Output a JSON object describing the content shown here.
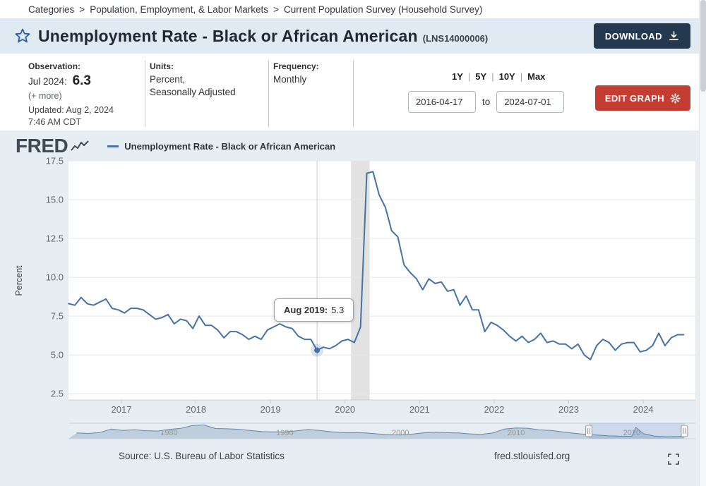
{
  "breadcrumb": {
    "items": [
      "Categories",
      "Population, Employment, & Labor Markets",
      "Current Population Survey (Household Survey)"
    ],
    "separator": ">"
  },
  "header": {
    "title": "Unemployment Rate - Black or African American",
    "series_id": "(LNS14000006)",
    "download_label": "DOWNLOAD"
  },
  "meta": {
    "observation_label": "Observation:",
    "observation_period": "Jul 2024:",
    "observation_value": "6.3",
    "more_link": "(+ more)",
    "updated": "Updated: Aug 2, 2024",
    "updated_time": "7:46 AM CDT",
    "units_label": "Units:",
    "units_value_1": "Percent,",
    "units_value_2": "Seasonally Adjusted",
    "frequency_label": "Frequency:",
    "frequency_value": "Monthly"
  },
  "range": {
    "presets": [
      "1Y",
      "5Y",
      "10Y",
      "Max"
    ],
    "separator": "|",
    "start_date": "2016-04-17",
    "to_label": "to",
    "end_date": "2024-07-01",
    "edit_label": "EDIT GRAPH"
  },
  "logo": {
    "text": "FRED"
  },
  "footer": {
    "source": "Source: U.S. Bureau of Labor Statistics",
    "site": "fred.stlouisfed.org"
  },
  "chart_data": {
    "type": "line",
    "title": "Unemployment Rate - Black or African American",
    "ylabel": "Percent",
    "series_color": "#4572a7",
    "frequency": "monthly",
    "start": "2016-04",
    "values": [
      8.3,
      8.2,
      8.7,
      8.3,
      8.2,
      8.4,
      8.6,
      8.0,
      7.9,
      7.7,
      8.0,
      8.0,
      7.9,
      7.6,
      7.3,
      7.4,
      7.6,
      7.0,
      7.3,
      7.2,
      6.7,
      7.5,
      6.9,
      6.9,
      6.6,
      6.1,
      6.5,
      6.5,
      6.3,
      6.0,
      6.2,
      6.0,
      6.6,
      6.8,
      7.0,
      6.8,
      6.7,
      6.2,
      6.0,
      6.0,
      5.3,
      5.5,
      5.4,
      5.6,
      5.9,
      6.0,
      5.8,
      6.8,
      16.7,
      16.8,
      15.3,
      14.5,
      13.0,
      12.6,
      10.8,
      10.3,
      9.9,
      9.2,
      9.9,
      9.6,
      9.7,
      9.1,
      9.2,
      8.2,
      8.8,
      7.9,
      7.9,
      6.5,
      7.1,
      6.9,
      6.6,
      6.2,
      5.9,
      6.2,
      5.8,
      6.0,
      6.4,
      5.8,
      5.9,
      5.7,
      5.7,
      5.4,
      5.7,
      5.0,
      4.7,
      5.6,
      6.0,
      5.8,
      5.3,
      5.7,
      5.8,
      5.8,
      5.2,
      5.3,
      5.6,
      6.4,
      5.6,
      6.1,
      6.3,
      6.3
    ],
    "yticks": [
      2.5,
      5.0,
      7.5,
      10.0,
      12.5,
      15.0,
      17.5
    ],
    "ylim": [
      2.1,
      17.5
    ],
    "xticks_years": [
      2017,
      2018,
      2019,
      2020,
      2021,
      2022,
      2023,
      2024
    ],
    "xlim_years": [
      2016.29,
      2024.7
    ],
    "recession_band_years": [
      2020.08,
      2020.33
    ],
    "grid": "horizontal",
    "highlight": {
      "index": 40,
      "value": 5.3,
      "label_text": "Aug 2019:",
      "value_text": "5.3"
    },
    "navigator": {
      "xlim_years": [
        1971.3,
        2025.5
      ],
      "selected_years": [
        2016.29,
        2024.55
      ],
      "year_labels": [
        1980,
        1990,
        2000,
        2010,
        2020
      ],
      "points": [
        [
          1972,
          10.0
        ],
        [
          1973,
          9.4
        ],
        [
          1974,
          10.5
        ],
        [
          1975,
          14.8
        ],
        [
          1976,
          13.1
        ],
        [
          1977,
          14.0
        ],
        [
          1978,
          12.8
        ],
        [
          1979,
          12.3
        ],
        [
          1980,
          14.3
        ],
        [
          1981,
          15.6
        ],
        [
          1982,
          18.9
        ],
        [
          1983,
          19.8
        ],
        [
          1984,
          15.4
        ],
        [
          1985,
          15.1
        ],
        [
          1986,
          14.5
        ],
        [
          1987,
          13.0
        ],
        [
          1988,
          11.7
        ],
        [
          1989,
          11.4
        ],
        [
          1990,
          11.4
        ],
        [
          1991,
          12.5
        ],
        [
          1992,
          14.2
        ],
        [
          1993,
          13.0
        ],
        [
          1994,
          11.5
        ],
        [
          1995,
          10.4
        ],
        [
          1996,
          10.5
        ],
        [
          1997,
          10.0
        ],
        [
          1998,
          8.9
        ],
        [
          1999,
          8.0
        ],
        [
          2000,
          7.6
        ],
        [
          2001,
          8.6
        ],
        [
          2002,
          10.2
        ],
        [
          2003,
          10.8
        ],
        [
          2004,
          10.4
        ],
        [
          2005,
          10.0
        ],
        [
          2006,
          8.9
        ],
        [
          2007,
          8.3
        ],
        [
          2008,
          10.1
        ],
        [
          2009,
          14.8
        ],
        [
          2010,
          16.0
        ],
        [
          2011,
          15.8
        ],
        [
          2012,
          13.8
        ],
        [
          2013,
          13.1
        ],
        [
          2014,
          11.4
        ],
        [
          2015,
          9.6
        ],
        [
          2016,
          8.4
        ],
        [
          2017,
          7.5
        ],
        [
          2018,
          6.5
        ],
        [
          2019,
          6.1
        ],
        [
          2020,
          6.0
        ],
        [
          2020.35,
          16.8
        ],
        [
          2021,
          9.2
        ],
        [
          2022,
          6.1
        ],
        [
          2023,
          5.5
        ],
        [
          2024,
          5.8
        ],
        [
          2024.5,
          6.3
        ]
      ]
    }
  }
}
